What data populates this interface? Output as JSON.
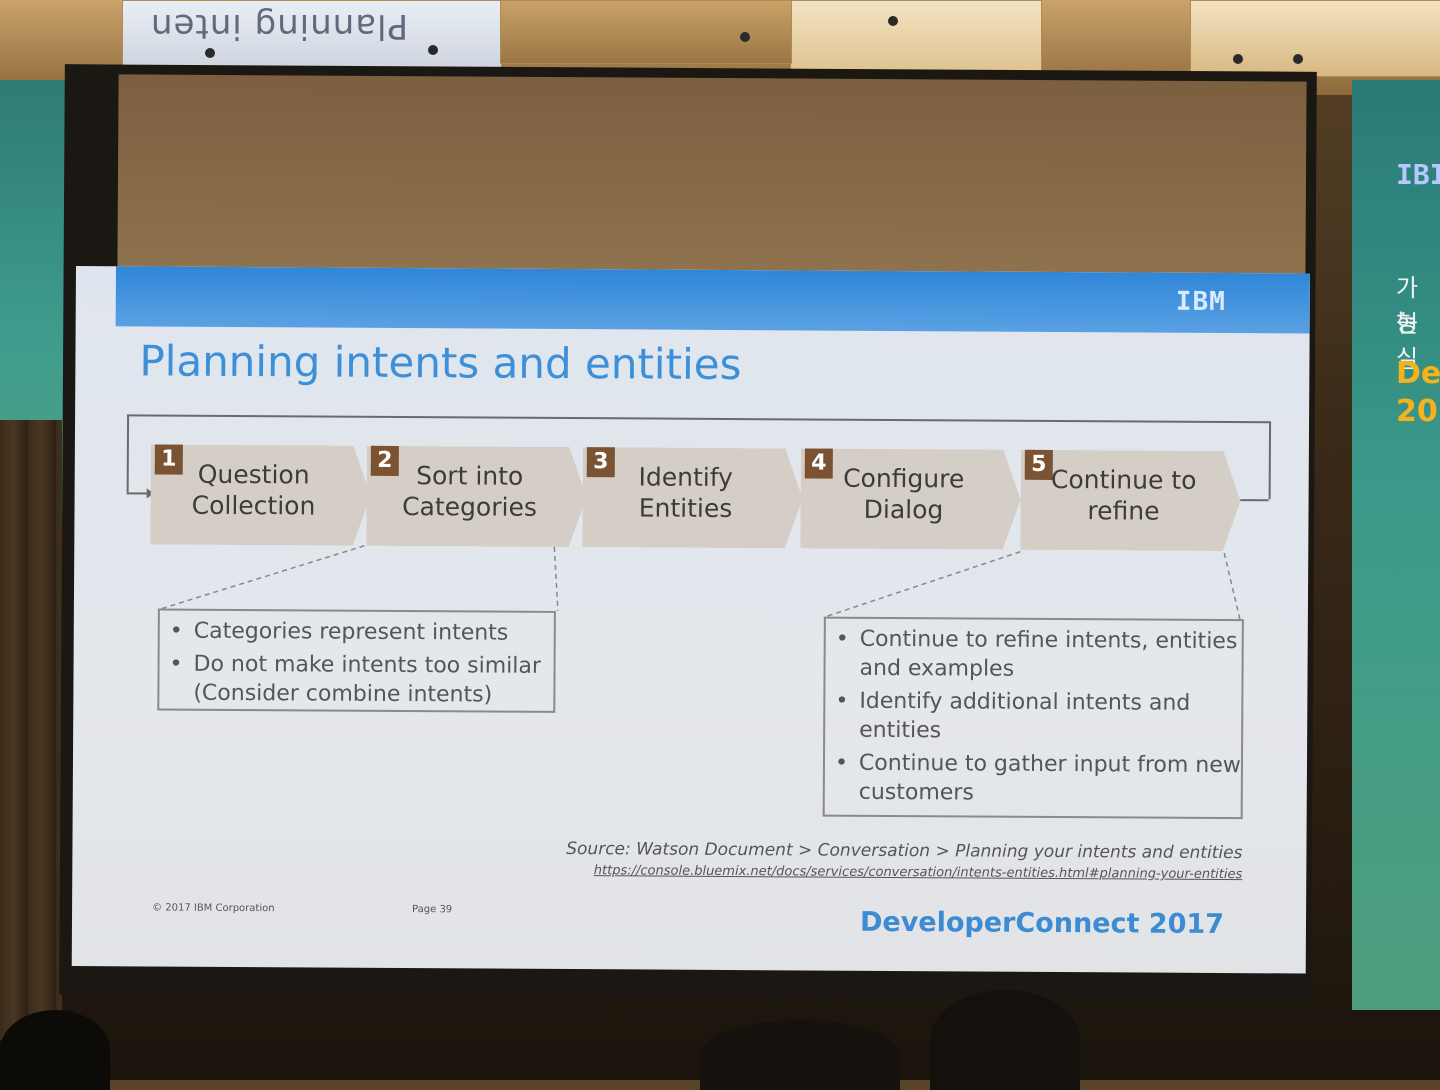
{
  "ceiling": {
    "mirrored_sign": "Planning inten"
  },
  "right_banner": {
    "lines": [
      "IBI",
      "가능",
      "현실",
      "De",
      "20"
    ]
  },
  "slide": {
    "logo": "IBM",
    "title": "Planning intents and entities",
    "steps": [
      {
        "number": "1",
        "label": "Question Collection"
      },
      {
        "number": "2",
        "label": "Sort into Categories"
      },
      {
        "number": "3",
        "label": "Identify Entities"
      },
      {
        "number": "4",
        "label": "Configure Dialog"
      },
      {
        "number": "5",
        "label": "Continue to refine"
      }
    ],
    "left_callout": [
      "Categories represent intents",
      "Do not make intents too similar (Consider combine intents)"
    ],
    "right_callout": [
      "Continue to refine intents, entities and examples",
      "Identify additional intents and entities",
      "Continue to gather input from new customers"
    ],
    "source": "Source: Watson Document > Conversation > Planning your intents and entities",
    "source_url": "https://console.bluemix.net/docs/services/conversation/intents-entities.html#planning-your-entities",
    "copyright": "© 2017 IBM Corporation",
    "page": "Page 39",
    "brand": "DeveloperConnect 2017"
  },
  "colors": {
    "header_blue": "#2f86d8",
    "title_blue": "#3d8fd8",
    "step_fill": "#d5cec7",
    "step_number_fill": "#7b5333",
    "brand_blue": "#3c8bd3"
  }
}
